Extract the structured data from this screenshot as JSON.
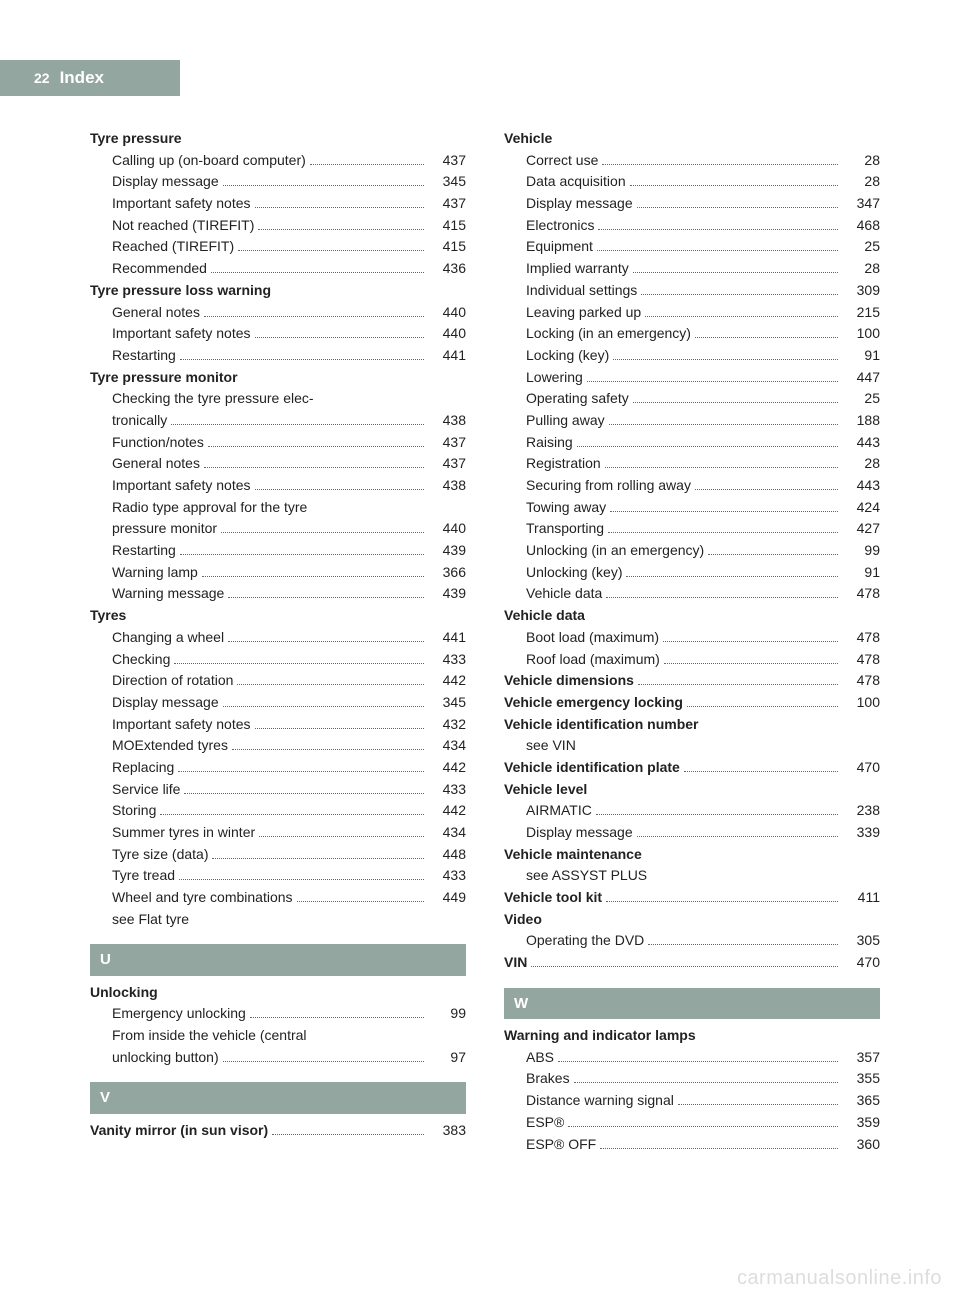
{
  "page_number": "22",
  "page_title": "Index",
  "header": {
    "band_width": 180,
    "bg": "#94a6a0",
    "fg": "#ffffff"
  },
  "watermark": "carmanualsonline.info",
  "left_col": [
    {
      "type": "heading",
      "text": "Tyre pressure"
    },
    {
      "type": "sub",
      "label": "Calling up (on-board computer)",
      "page": "437"
    },
    {
      "type": "sub",
      "label": "Display message",
      "page": "345"
    },
    {
      "type": "sub",
      "label": "Important safety notes",
      "page": "437"
    },
    {
      "type": "sub",
      "label": "Not reached (TIREFIT)",
      "page": "415"
    },
    {
      "type": "sub",
      "label": "Reached (TIREFIT)",
      "page": "415"
    },
    {
      "type": "sub",
      "label": "Recommended",
      "page": "436"
    },
    {
      "type": "heading",
      "text": "Tyre pressure loss warning"
    },
    {
      "type": "sub",
      "label": "General notes",
      "page": "440"
    },
    {
      "type": "sub",
      "label": "Important safety notes",
      "page": "440"
    },
    {
      "type": "sub",
      "label": "Restarting",
      "page": "441"
    },
    {
      "type": "heading",
      "text": "Tyre pressure monitor"
    },
    {
      "type": "multi",
      "lines": [
        "Checking the tyre pressure elec-",
        "tronically"
      ],
      "page": "438"
    },
    {
      "type": "sub",
      "label": "Function/notes",
      "page": "437"
    },
    {
      "type": "sub",
      "label": "General notes",
      "page": "437"
    },
    {
      "type": "sub",
      "label": "Important safety notes",
      "page": "438"
    },
    {
      "type": "multi",
      "lines": [
        "Radio type approval for the tyre",
        "pressure monitor"
      ],
      "page": "440"
    },
    {
      "type": "sub",
      "label": "Restarting",
      "page": "439"
    },
    {
      "type": "sub",
      "label": "Warning lamp",
      "page": "366"
    },
    {
      "type": "sub",
      "label": "Warning message",
      "page": "439"
    },
    {
      "type": "heading",
      "text": "Tyres"
    },
    {
      "type": "sub",
      "label": "Changing a wheel",
      "page": "441"
    },
    {
      "type": "sub",
      "label": "Checking",
      "page": "433"
    },
    {
      "type": "sub",
      "label": "Direction of rotation",
      "page": "442"
    },
    {
      "type": "sub",
      "label": "Display message",
      "page": "345"
    },
    {
      "type": "sub",
      "label": "Important safety notes",
      "page": "432"
    },
    {
      "type": "sub",
      "label": "MOExtended tyres",
      "page": "434"
    },
    {
      "type": "sub",
      "label": "Replacing",
      "page": "442"
    },
    {
      "type": "sub",
      "label": "Service life",
      "page": "433"
    },
    {
      "type": "sub",
      "label": "Storing",
      "page": "442"
    },
    {
      "type": "sub",
      "label": "Summer tyres in winter",
      "page": "434"
    },
    {
      "type": "sub",
      "label": "Tyre size (data)",
      "page": "448"
    },
    {
      "type": "sub",
      "label": "Tyre tread",
      "page": "433"
    },
    {
      "type": "sub",
      "label": "Wheel and tyre combinations",
      "page": "449"
    },
    {
      "type": "see",
      "text": "see Flat tyre"
    },
    {
      "type": "section",
      "letter": "U"
    },
    {
      "type": "heading",
      "text": "Unlocking"
    },
    {
      "type": "sub",
      "label": "Emergency unlocking",
      "page": "99"
    },
    {
      "type": "multi",
      "lines": [
        "From inside the vehicle (central",
        "unlocking button)"
      ],
      "page": "97"
    },
    {
      "type": "section",
      "letter": "V"
    },
    {
      "type": "entrybold",
      "label": "Vanity mirror (in sun visor)",
      "page": "383"
    }
  ],
  "right_col": [
    {
      "type": "heading",
      "text": "Vehicle"
    },
    {
      "type": "sub",
      "label": "Correct use",
      "page": "28"
    },
    {
      "type": "sub",
      "label": "Data acquisition",
      "page": "28"
    },
    {
      "type": "sub",
      "label": "Display message",
      "page": "347"
    },
    {
      "type": "sub",
      "label": "Electronics",
      "page": "468"
    },
    {
      "type": "sub",
      "label": "Equipment",
      "page": "25"
    },
    {
      "type": "sub",
      "label": "Implied warranty",
      "page": "28"
    },
    {
      "type": "sub",
      "label": "Individual settings",
      "page": "309"
    },
    {
      "type": "sub",
      "label": "Leaving parked up",
      "page": "215"
    },
    {
      "type": "sub",
      "label": "Locking (in an emergency)",
      "page": "100"
    },
    {
      "type": "sub",
      "label": "Locking (key)",
      "page": "91"
    },
    {
      "type": "sub",
      "label": "Lowering",
      "page": "447"
    },
    {
      "type": "sub",
      "label": "Operating safety",
      "page": "25"
    },
    {
      "type": "sub",
      "label": "Pulling away",
      "page": "188"
    },
    {
      "type": "sub",
      "label": "Raising",
      "page": "443"
    },
    {
      "type": "sub",
      "label": "Registration",
      "page": "28"
    },
    {
      "type": "sub",
      "label": "Securing from rolling away",
      "page": "443"
    },
    {
      "type": "sub",
      "label": "Towing away",
      "page": "424"
    },
    {
      "type": "sub",
      "label": "Transporting",
      "page": "427"
    },
    {
      "type": "sub",
      "label": "Unlocking (in an emergency)",
      "page": "99"
    },
    {
      "type": "sub",
      "label": "Unlocking (key)",
      "page": "91"
    },
    {
      "type": "sub",
      "label": "Vehicle data",
      "page": "478"
    },
    {
      "type": "heading",
      "text": "Vehicle data"
    },
    {
      "type": "sub",
      "label": "Boot load (maximum)",
      "page": "478"
    },
    {
      "type": "sub",
      "label": "Roof load (maximum)",
      "page": "478"
    },
    {
      "type": "entrybold",
      "label": "Vehicle dimensions",
      "page": "478"
    },
    {
      "type": "entrybold",
      "label": "Vehicle emergency locking",
      "page": "100"
    },
    {
      "type": "heading",
      "text": "Vehicle identification number"
    },
    {
      "type": "see",
      "text": "see VIN"
    },
    {
      "type": "entrybold",
      "label": "Vehicle identification plate",
      "page": "470"
    },
    {
      "type": "heading",
      "text": "Vehicle level"
    },
    {
      "type": "sub",
      "label": "AIRMATIC",
      "page": "238"
    },
    {
      "type": "sub",
      "label": "Display message",
      "page": "339"
    },
    {
      "type": "heading",
      "text": "Vehicle maintenance"
    },
    {
      "type": "see",
      "text": "see ASSYST PLUS"
    },
    {
      "type": "entrybold",
      "label": "Vehicle tool kit",
      "page": "411"
    },
    {
      "type": "heading",
      "text": "Video"
    },
    {
      "type": "sub",
      "label": "Operating the DVD",
      "page": "305"
    },
    {
      "type": "entrybold",
      "label": "VIN",
      "page": "470"
    },
    {
      "type": "section",
      "letter": "W"
    },
    {
      "type": "heading",
      "text": "Warning and indicator lamps"
    },
    {
      "type": "sub",
      "label": "ABS",
      "page": "357"
    },
    {
      "type": "sub",
      "label": "Brakes",
      "page": "355"
    },
    {
      "type": "sub",
      "label": "Distance warning signal",
      "page": "365"
    },
    {
      "type": "sub",
      "label": "ESP®",
      "page": "359"
    },
    {
      "type": "sub",
      "label": "ESP® OFF",
      "page": "360"
    }
  ]
}
